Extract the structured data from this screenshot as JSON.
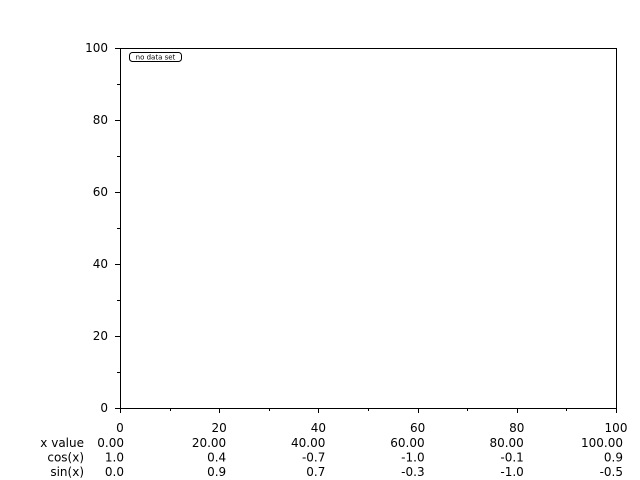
{
  "chart_data": {
    "type": "line",
    "title": "",
    "xlabel": "",
    "ylabel": "",
    "xlim": [
      0,
      100
    ],
    "ylim": [
      0,
      100
    ],
    "x_ticks": [
      "0",
      "20",
      "40",
      "60",
      "80",
      "100"
    ],
    "y_ticks": [
      "0",
      "20",
      "40",
      "60",
      "80",
      "100"
    ],
    "grid": false,
    "series": [],
    "legend": {
      "placement": "top-left",
      "text": "no data set"
    },
    "table": {
      "rows": [
        {
          "label": "x value",
          "values": [
            "0.00",
            "20.00",
            "40.00",
            "60.00",
            "80.00",
            "100.00"
          ]
        },
        {
          "label": "cos(x)",
          "values": [
            "1.0",
            "0.4",
            "-0.7",
            "-1.0",
            "-0.1",
            "0.9"
          ]
        },
        {
          "label": "sin(x)",
          "values": [
            "0.0",
            "0.9",
            "0.7",
            "-0.3",
            "-1.0",
            "-0.5"
          ]
        }
      ]
    }
  }
}
